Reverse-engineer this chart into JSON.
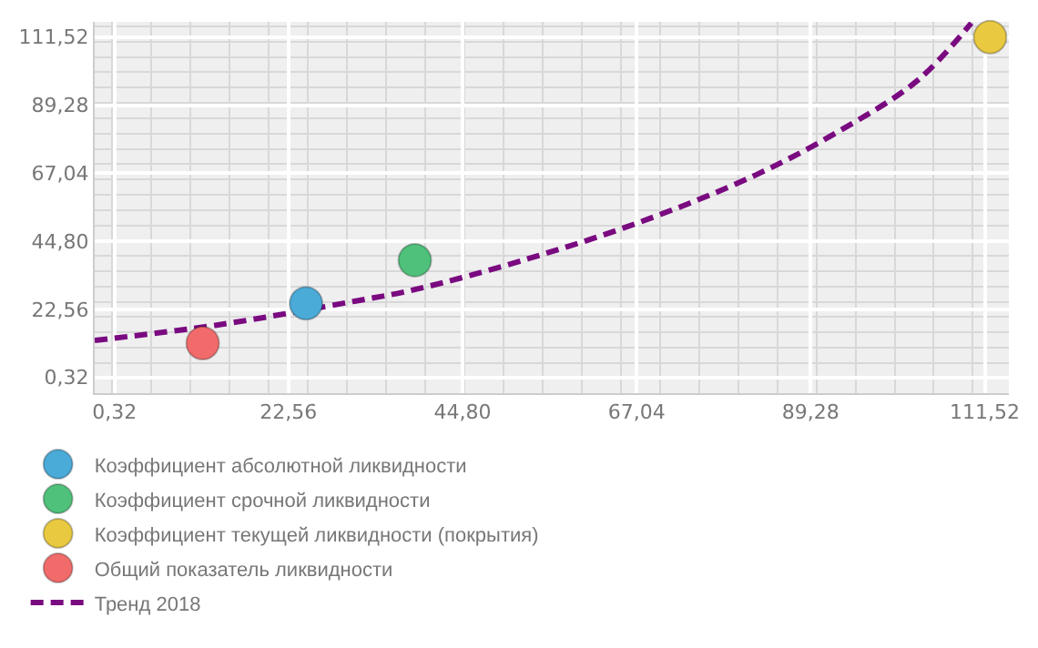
{
  "chart_data": {
    "type": "scatter",
    "xlim": [
      -2.2,
      114.6
    ],
    "ylim": [
      -4.85,
      116.5
    ],
    "xticks": [
      {
        "value": 0.32,
        "label": "0,32"
      },
      {
        "value": 22.56,
        "label": "22,56"
      },
      {
        "value": 44.8,
        "label": "44,80"
      },
      {
        "value": 67.04,
        "label": "67,04"
      },
      {
        "value": 89.28,
        "label": "89,28"
      },
      {
        "value": 111.52,
        "label": "111,52"
      }
    ],
    "yticks": [
      {
        "value": 0.32,
        "label": "0,32"
      },
      {
        "value": 22.56,
        "label": "22,56"
      },
      {
        "value": 44.8,
        "label": "44,80"
      },
      {
        "value": 67.04,
        "label": "67,04"
      },
      {
        "value": 89.28,
        "label": "89,28"
      },
      {
        "value": 111.52,
        "label": "111,52"
      }
    ],
    "grid": true,
    "legend": "bottom",
    "marker": "circle",
    "series": [
      {
        "name": "Коэффициент абсолютной ликвидности",
        "color": "#4aaad8",
        "x": [
          24.8
        ],
        "values": [
          24.5
        ]
      },
      {
        "name": "Коэффициент срочной ликвидности",
        "color": "#4fc17a",
        "x": [
          38.7
        ],
        "values": [
          38.6
        ]
      },
      {
        "name": "Коэффициент текущей ликвидности (покрытия)",
        "color": "#e8c940",
        "x": [
          112.2
        ],
        "values": [
          111.5
        ]
      },
      {
        "name": "Общий показатель ликвидности",
        "color": "#f26b6b",
        "x": [
          11.6
        ],
        "values": [
          11.5
        ]
      },
      {
        "name": "Тренд 2018",
        "type": "line",
        "color": "#7a0a80",
        "line_style": "dashed",
        "marker": "none",
        "x": [
          -2.2,
          13.4,
          31.0,
          38.7,
          53.2,
          67.4,
          82.3,
          93.8,
          103,
          109.8
        ],
        "values": [
          12.4,
          17.4,
          25.2,
          29.0,
          39.1,
          51.0,
          66.5,
          82.1,
          97.5,
          116.1
        ]
      }
    ]
  }
}
